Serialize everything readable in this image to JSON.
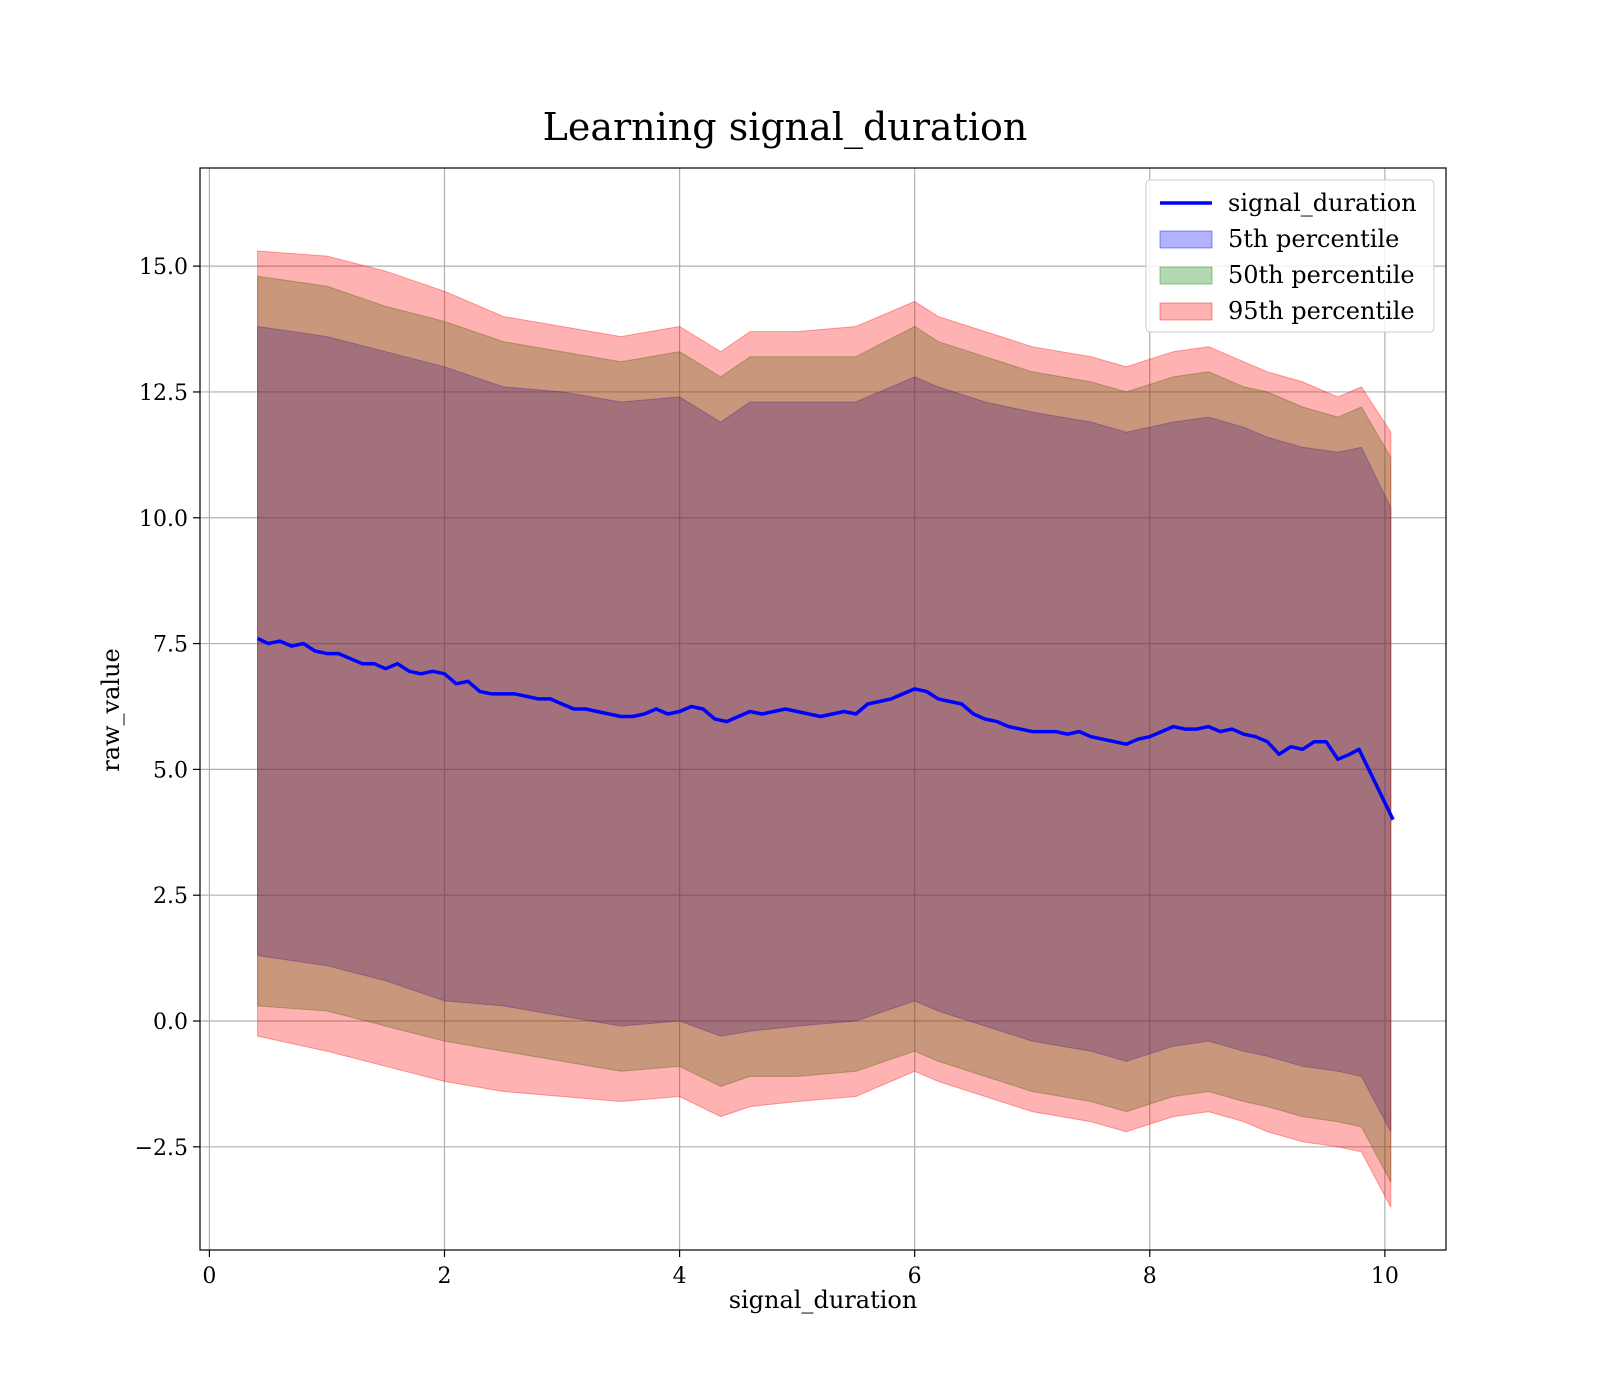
{
  "chart_data": {
    "type": "line",
    "title": "Learning signal_duration",
    "xlabel": "signal_duration",
    "ylabel": "raw_value",
    "xlim": [
      -0.08,
      10.52
    ],
    "ylim": [
      -4.55,
      16.95
    ],
    "x_ticks": [
      0,
      2,
      4,
      6,
      8,
      10
    ],
    "x_tick_labels": [
      "0",
      "2",
      "4",
      "6",
      "8",
      "10"
    ],
    "y_ticks": [
      -2.5,
      0.0,
      2.5,
      5.0,
      7.5,
      10.0,
      12.5,
      15.0
    ],
    "y_tick_labels": [
      "−2.5",
      "0.0",
      "2.5",
      "5.0",
      "7.5",
      "10.0",
      "12.5",
      "15.0"
    ],
    "grid": true,
    "legend_position": "top-right",
    "series": [
      {
        "name": "signal_duration",
        "kind": "line",
        "color": "#0000ff",
        "x": [
          0.41,
          0.5,
          0.6,
          0.7,
          0.8,
          0.9,
          1.0,
          1.1,
          1.2,
          1.3,
          1.4,
          1.5,
          1.6,
          1.7,
          1.8,
          1.9,
          2.0,
          2.1,
          2.2,
          2.3,
          2.4,
          2.5,
          2.6,
          2.7,
          2.8,
          2.9,
          3.0,
          3.1,
          3.2,
          3.3,
          3.4,
          3.5,
          3.6,
          3.7,
          3.8,
          3.9,
          4.0,
          4.1,
          4.2,
          4.3,
          4.4,
          4.5,
          4.6,
          4.7,
          4.8,
          4.9,
          5.0,
          5.1,
          5.2,
          5.3,
          5.4,
          5.5,
          5.6,
          5.7,
          5.8,
          5.9,
          6.0,
          6.1,
          6.2,
          6.3,
          6.4,
          6.5,
          6.6,
          6.7,
          6.8,
          6.9,
          7.0,
          7.1,
          7.2,
          7.3,
          7.4,
          7.5,
          7.6,
          7.7,
          7.8,
          7.9,
          8.0,
          8.1,
          8.2,
          8.3,
          8.4,
          8.5,
          8.6,
          8.7,
          8.8,
          8.9,
          9.0,
          9.1,
          9.2,
          9.3,
          9.4,
          9.5,
          9.6,
          9.7,
          9.78,
          10.07
        ],
        "y": [
          7.6,
          7.5,
          7.55,
          7.45,
          7.5,
          7.35,
          7.3,
          7.3,
          7.2,
          7.1,
          7.1,
          7.0,
          7.1,
          6.95,
          6.9,
          6.95,
          6.9,
          6.7,
          6.75,
          6.55,
          6.5,
          6.5,
          6.5,
          6.45,
          6.4,
          6.4,
          6.3,
          6.2,
          6.2,
          6.15,
          6.1,
          6.05,
          6.05,
          6.1,
          6.2,
          6.1,
          6.15,
          6.25,
          6.2,
          6.0,
          5.95,
          6.05,
          6.15,
          6.1,
          6.15,
          6.2,
          6.15,
          6.1,
          6.05,
          6.1,
          6.15,
          6.1,
          6.3,
          6.35,
          6.4,
          6.5,
          6.6,
          6.55,
          6.4,
          6.35,
          6.3,
          6.1,
          6.0,
          5.95,
          5.85,
          5.8,
          5.75,
          5.75,
          5.75,
          5.7,
          5.75,
          5.65,
          5.6,
          5.55,
          5.5,
          5.6,
          5.65,
          5.75,
          5.85,
          5.8,
          5.8,
          5.85,
          5.75,
          5.8,
          5.7,
          5.65,
          5.55,
          5.3,
          5.45,
          5.4,
          5.55,
          5.55,
          5.2,
          5.3,
          5.4,
          4.0
        ]
      },
      {
        "name": "5th percentile",
        "kind": "band",
        "color": "#0000ff",
        "x": [
          0.41,
          1.0,
          1.5,
          2.0,
          2.5,
          3.0,
          3.5,
          4.0,
          4.35,
          4.6,
          5.0,
          5.5,
          6.0,
          6.2,
          6.6,
          7.0,
          7.5,
          7.8,
          8.2,
          8.5,
          8.8,
          9.0,
          9.3,
          9.6,
          9.8,
          10.05
        ],
        "upper": [
          13.8,
          13.6,
          13.3,
          13.0,
          12.6,
          12.5,
          12.3,
          12.4,
          11.9,
          12.3,
          12.3,
          12.3,
          12.8,
          12.6,
          12.3,
          12.1,
          11.9,
          11.7,
          11.9,
          12.0,
          11.8,
          11.6,
          11.4,
          11.3,
          11.4,
          10.2
        ],
        "lower": [
          1.3,
          1.1,
          0.8,
          0.4,
          0.3,
          0.1,
          -0.1,
          0.0,
          -0.3,
          -0.2,
          -0.1,
          0.0,
          0.4,
          0.2,
          -0.1,
          -0.4,
          -0.6,
          -0.8,
          -0.5,
          -0.4,
          -0.6,
          -0.7,
          -0.9,
          -1.0,
          -1.1,
          -2.2
        ]
      },
      {
        "name": "50th percentile",
        "kind": "band",
        "color": "#008000",
        "x": [
          0.41,
          1.0,
          1.5,
          2.0,
          2.5,
          3.0,
          3.5,
          4.0,
          4.35,
          4.6,
          5.0,
          5.5,
          6.0,
          6.2,
          6.6,
          7.0,
          7.5,
          7.8,
          8.2,
          8.5,
          8.8,
          9.0,
          9.3,
          9.6,
          9.8,
          10.05
        ],
        "upper": [
          14.8,
          14.6,
          14.2,
          13.9,
          13.5,
          13.3,
          13.1,
          13.3,
          12.8,
          13.2,
          13.2,
          13.2,
          13.8,
          13.5,
          13.2,
          12.9,
          12.7,
          12.5,
          12.8,
          12.9,
          12.6,
          12.5,
          12.2,
          12.0,
          12.2,
          11.2
        ],
        "lower": [
          0.3,
          0.2,
          -0.1,
          -0.4,
          -0.6,
          -0.8,
          -1.0,
          -0.9,
          -1.3,
          -1.1,
          -1.1,
          -1.0,
          -0.6,
          -0.8,
          -1.1,
          -1.4,
          -1.6,
          -1.8,
          -1.5,
          -1.4,
          -1.6,
          -1.7,
          -1.9,
          -2.0,
          -2.1,
          -3.2
        ]
      },
      {
        "name": "95th percentile",
        "kind": "band",
        "color": "#ff0000",
        "x": [
          0.41,
          1.0,
          1.5,
          2.0,
          2.5,
          3.0,
          3.5,
          4.0,
          4.35,
          4.6,
          5.0,
          5.5,
          6.0,
          6.2,
          6.6,
          7.0,
          7.5,
          7.8,
          8.2,
          8.5,
          8.8,
          9.0,
          9.3,
          9.6,
          9.8,
          10.05
        ],
        "upper": [
          15.3,
          15.2,
          14.9,
          14.5,
          14.0,
          13.8,
          13.6,
          13.8,
          13.3,
          13.7,
          13.7,
          13.8,
          14.3,
          14.0,
          13.7,
          13.4,
          13.2,
          13.0,
          13.3,
          13.4,
          13.1,
          12.9,
          12.7,
          12.4,
          12.6,
          11.7
        ],
        "lower": [
          -0.3,
          -0.6,
          -0.9,
          -1.2,
          -1.4,
          -1.5,
          -1.6,
          -1.5,
          -1.9,
          -1.7,
          -1.6,
          -1.5,
          -1.0,
          -1.2,
          -1.5,
          -1.8,
          -2.0,
          -2.2,
          -1.9,
          -1.8,
          -2.0,
          -2.2,
          -2.4,
          -2.5,
          -2.6,
          -3.7
        ]
      }
    ]
  }
}
